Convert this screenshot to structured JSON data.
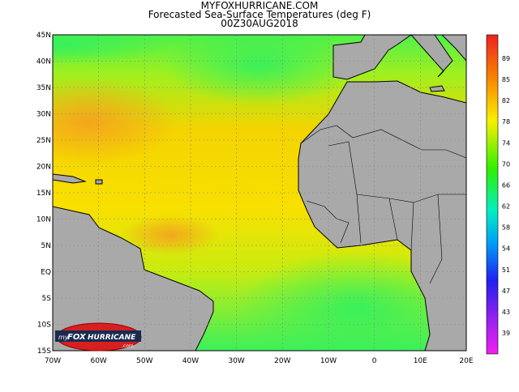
{
  "header": {
    "lines": [
      "MYFOXHURRICANE.COM",
      "Forecasted Sea-Surface Temperatures (deg F)",
      "00Z30AUG2018"
    ]
  },
  "map": {
    "lat_labels": [
      "45N",
      "40N",
      "35N",
      "30N",
      "25N",
      "20N",
      "15N",
      "10N",
      "5N",
      "EQ",
      "5S",
      "10S",
      "15S"
    ],
    "lon_labels": [
      "70W",
      "60W",
      "50W",
      "40W",
      "30W",
      "20W",
      "10W",
      "0",
      "10E",
      "20E"
    ]
  },
  "colorbar": {
    "labels": [
      "89",
      "85",
      "82",
      "78",
      "74",
      "70",
      "66",
      "62",
      "58",
      "54",
      "51",
      "47",
      "43",
      "39"
    ]
  },
  "logo": {
    "prefix": "my",
    "brand": "FOX",
    "suffix": "HURRICANE",
    "domain": ".com"
  }
}
